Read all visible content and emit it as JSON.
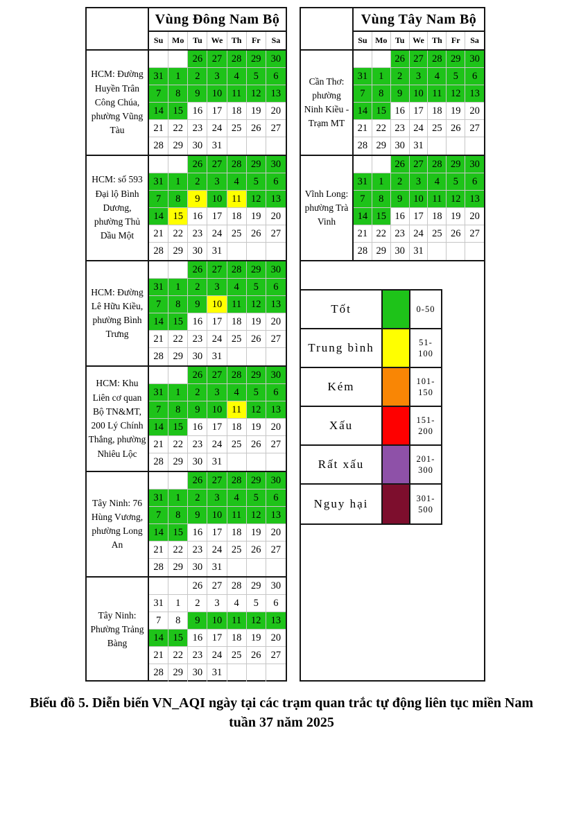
{
  "caption": {
    "line1": "Biểu đồ 5. Diễn biến VN_AQI ngày tại các trạm quan trắc tự động liên tục miền Nam",
    "line2": "tuần 37 năm 2025"
  },
  "chart_data": {
    "type": "heatmap",
    "title": "Biểu đồ 5. Diễn biến VN_AQI ngày tại các trạm quan trắc tự động liên tục miền Nam tuần 37 năm 2025",
    "description_semantics": "Calendar heatmap: each station has a month grid; cell color encodes daily VN_AQI category",
    "day_columns": [
      "Su",
      "Mo",
      "Tu",
      "We",
      "Th",
      "Fr",
      "Sa"
    ],
    "calendar_grid": [
      [
        "",
        "",
        26,
        27,
        28,
        29,
        30
      ],
      [
        31,
        1,
        2,
        3,
        4,
        5,
        6
      ],
      [
        7,
        8,
        9,
        10,
        11,
        12,
        13
      ],
      [
        14,
        15,
        16,
        17,
        18,
        19,
        20
      ],
      [
        21,
        22,
        23,
        24,
        25,
        26,
        27
      ],
      [
        28,
        29,
        30,
        31,
        "",
        "",
        ""
      ]
    ],
    "color_codes": {
      "g": "good",
      "y": "moderate",
      "w": "none"
    },
    "palette": {
      "good": "#1EC319",
      "moderate": "#FFFF00",
      "poor": "#F98605",
      "bad": "#FE0000",
      "very_bad": "#8E51A8",
      "hazardous": "#7D0E2D"
    },
    "regions": [
      {
        "title": "Vùng Đông Nam Bộ",
        "has_legend": false,
        "stations": [
          {
            "name": "HCM: Đường Huyền Trân Công Chúa, phường Vũng Tàu",
            "week_colors": [
              "..ggggg",
              "ggggggg",
              "ggggggg",
              "ggwwwww",
              "wwwwwww",
              "wwww..."
            ]
          },
          {
            "name": "HCM: số 593 Đại lộ Bình Dương, phường Thủ Dầu Một",
            "week_colors": [
              "..ggggg",
              "ggggggg",
              "ggygygg",
              "gywwwww",
              "wwwwwww",
              "wwww..."
            ]
          },
          {
            "name": "HCM: Đường Lê Hữu Kiều, phường Bình Trưng",
            "week_colors": [
              "..ggggg",
              "ggggggg",
              "gggyggg",
              "ggwwwww",
              "wwwwwww",
              "wwww..."
            ]
          },
          {
            "name": "HCM: Khu Liên cơ quan Bộ TN&MT, 200 Lý Chính Thắng, phường Nhiêu Lộc",
            "week_colors": [
              "..ggggg",
              "ggggggg",
              "ggggygg",
              "ggwwwww",
              "wwwwwww",
              "wwww..."
            ]
          },
          {
            "name": "Tây Ninh: 76 Hùng Vương, phường Long An",
            "week_colors": [
              "..ggggg",
              "ggggggg",
              "ggggggg",
              "ggwwwww",
              "wwwwwww",
              "wwww..."
            ]
          },
          {
            "name": "Tây Ninh: Phường Trảng Bàng",
            "week_colors": [
              "..wwwww",
              "wwwwwww",
              "wwggggg",
              "ggwwwww",
              "wwwwwww",
              "wwww..."
            ]
          }
        ]
      },
      {
        "title": "Vùng Tây Nam Bộ",
        "has_legend": true,
        "stations": [
          {
            "name": "Cần Thơ: phường Ninh Kiều - Trạm MT",
            "week_colors": [
              "..ggggg",
              "ggggggg",
              "ggggggg",
              "ggwwwww",
              "wwwwwww",
              "wwww..."
            ]
          },
          {
            "name": "Vĩnh Long: phường Trà Vinh",
            "week_colors": [
              "..ggggg",
              "ggggggg",
              "ggggggg",
              "ggwwwww",
              "wwwwwww",
              "wwww..."
            ]
          }
        ]
      }
    ],
    "legend": [
      {
        "label": "Tốt",
        "key": "good",
        "range": "0-50"
      },
      {
        "label": "Trung bình",
        "key": "moderate",
        "range": "51-100"
      },
      {
        "label": "Kém",
        "key": "poor",
        "range": "101-150"
      },
      {
        "label": "Xấu",
        "key": "bad",
        "range": "151-200"
      },
      {
        "label": "Rất xấu",
        "key": "very_bad",
        "range": "201-300"
      },
      {
        "label": "Nguy hại",
        "key": "hazardous",
        "range": "301-500"
      }
    ]
  }
}
